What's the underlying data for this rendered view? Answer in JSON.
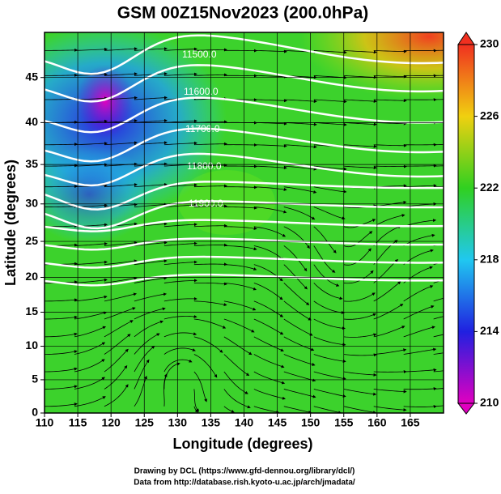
{
  "chart_data": {
    "type": "vector-map",
    "title": "GSM 00Z15Nov2023 (200.0hPa)",
    "x_label": "Longitude (degrees)",
    "y_label": "Latitude  (degrees)",
    "projection": "mercator",
    "xlim": [
      110,
      170
    ],
    "ylim": [
      0,
      49.6
    ],
    "xticks": [
      110,
      115,
      120,
      125,
      130,
      135,
      140,
      145,
      150,
      155,
      160,
      165
    ],
    "yticks": [
      0,
      5,
      10,
      15,
      20,
      25,
      30,
      35,
      40,
      45
    ],
    "grid": true,
    "colorbar": {
      "lim": [
        210,
        230
      ],
      "ticks": [
        210,
        214,
        218,
        222,
        226,
        230
      ],
      "colors": [
        "#e000c0",
        "#2020e0",
        "#20c8f0",
        "#30d020",
        "#f0d010",
        "#f03020"
      ]
    },
    "contour_labels": [
      "11500.0",
      "11600.0",
      "11700.0",
      "11800.0",
      "11900.0"
    ],
    "credits": [
      "Drawing by DCL (https://www.gfd-dennou.org/library/dcl/)",
      "Data from http://database.rish.kyoto-u.ac.jp/arch/jmadata/"
    ]
  }
}
